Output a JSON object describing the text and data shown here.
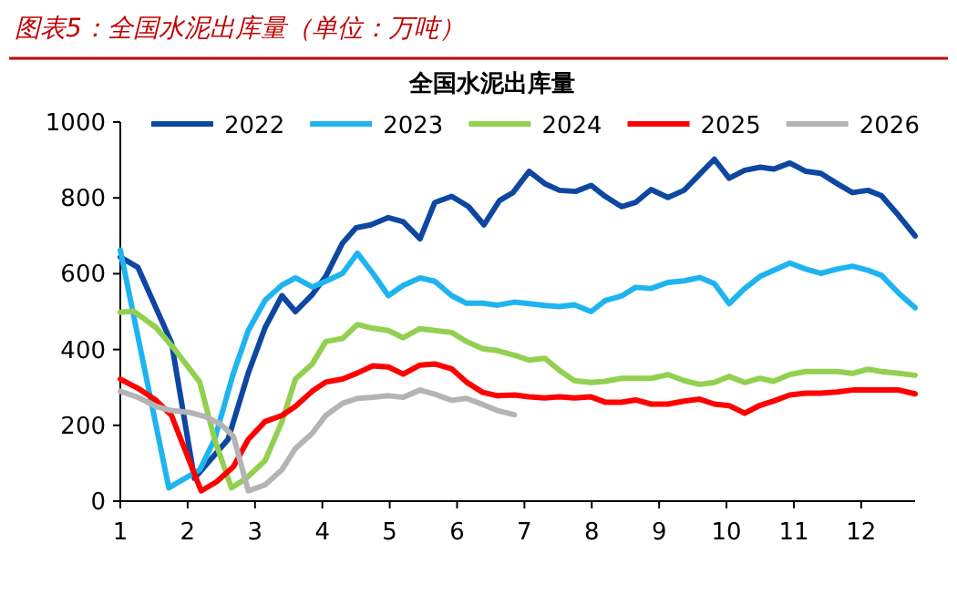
{
  "chart_data": {
    "type": "line",
    "title": "图表5：全国水泥出库量（单位：万吨）",
    "subtitle": "全国水泥出库量",
    "xlim": [
      1,
      12.8
    ],
    "xticks": [
      1,
      2,
      3,
      4,
      5,
      6,
      7,
      8,
      9,
      10,
      11,
      12
    ],
    "ylim": [
      0,
      1000
    ],
    "yticks": [
      0,
      200,
      400,
      600,
      800,
      1000
    ],
    "grid": false,
    "legend": "top",
    "marker": "none",
    "line_style": "solid",
    "series": [
      {
        "name": "2022",
        "color": "#0d47a1",
        "x": [
          1,
          1.26,
          1.76,
          2.1,
          2.6,
          2.9,
          3.15,
          3.4,
          3.6,
          3.85,
          4.05,
          4.3,
          4.5,
          4.72,
          4.98,
          5.2,
          5.45,
          5.67,
          5.92,
          6.17,
          6.4,
          6.63,
          6.83,
          7.07,
          7.3,
          7.52,
          7.76,
          7.99,
          8.2,
          8.44,
          8.65,
          8.88,
          9.13,
          9.37,
          9.6,
          9.82,
          10.04,
          10.27,
          10.5,
          10.7,
          10.94,
          11.18,
          11.4,
          11.64,
          11.87,
          12.1,
          12.3,
          12.56,
          12.8
        ],
        "values": [
          644,
          617,
          418,
          60,
          163,
          338,
          458,
          542,
          500,
          545,
          593,
          681,
          721,
          729,
          748,
          737,
          692,
          788,
          804,
          777,
          729,
          793,
          814,
          870,
          838,
          820,
          817,
          833,
          804,
          777,
          788,
          822,
          801,
          820,
          862,
          902,
          852,
          873,
          881,
          876,
          892,
          870,
          865,
          838,
          814,
          820,
          806,
          753,
          700
        ]
      },
      {
        "name": "2023",
        "color": "#1eb4f0",
        "x": [
          1,
          1.72,
          2.18,
          2.4,
          2.68,
          2.9,
          3.15,
          3.4,
          3.6,
          3.85,
          4.05,
          4.3,
          4.52,
          4.75,
          4.98,
          5.2,
          5.45,
          5.67,
          5.92,
          6.14,
          6.38,
          6.6,
          6.85,
          7.07,
          7.3,
          7.52,
          7.74,
          7.99,
          8.2,
          8.44,
          8.65,
          8.88,
          9.13,
          9.37,
          9.6,
          9.82,
          10.04,
          10.27,
          10.5,
          10.7,
          10.94,
          11.18,
          11.4,
          11.64,
          11.87,
          12.1,
          12.3,
          12.56,
          12.8
        ],
        "values": [
          662,
          35,
          83,
          163,
          338,
          450,
          530,
          570,
          589,
          565,
          580,
          601,
          654,
          601,
          542,
          569,
          589,
          580,
          542,
          522,
          522,
          517,
          525,
          521,
          516,
          513,
          518,
          500,
          529,
          541,
          564,
          561,
          577,
          581,
          590,
          574,
          521,
          561,
          593,
          609,
          628,
          612,
          601,
          612,
          620,
          609,
          596,
          548,
          510
        ]
      },
      {
        "name": "2024",
        "color": "#92d050",
        "x": [
          1,
          1.2,
          1.53,
          1.8,
          2.18,
          2.4,
          2.65,
          2.86,
          3.15,
          3.4,
          3.6,
          3.85,
          4.05,
          4.3,
          4.52,
          4.75,
          4.98,
          5.2,
          5.45,
          5.67,
          5.92,
          6.14,
          6.38,
          6.6,
          6.85,
          7.07,
          7.3,
          7.52,
          7.74,
          7.99,
          8.2,
          8.44,
          8.65,
          8.88,
          9.13,
          9.37,
          9.6,
          9.82,
          10.04,
          10.27,
          10.5,
          10.7,
          10.94,
          11.18,
          11.4,
          11.64,
          11.87,
          12.1,
          12.3,
          12.56,
          12.8
        ],
        "values": [
          498,
          501,
          458,
          402,
          314,
          163,
          35,
          59,
          107,
          210,
          322,
          362,
          421,
          429,
          466,
          456,
          450,
          431,
          455,
          450,
          445,
          421,
          402,
          397,
          385,
          372,
          377,
          345,
          318,
          313,
          316,
          324,
          324,
          324,
          334,
          318,
          308,
          313,
          329,
          313,
          324,
          316,
          334,
          342,
          342,
          342,
          337,
          348,
          342,
          337,
          332
        ]
      },
      {
        "name": "2025",
        "color": "#ff0000",
        "x": [
          1,
          1.26,
          1.53,
          1.76,
          2.2,
          2.43,
          2.68,
          2.9,
          3.15,
          3.4,
          3.6,
          3.85,
          4.05,
          4.3,
          4.52,
          4.75,
          4.98,
          5.2,
          5.45,
          5.67,
          5.92,
          6.14,
          6.38,
          6.6,
          6.85,
          7.07,
          7.3,
          7.52,
          7.74,
          7.99,
          8.2,
          8.44,
          8.65,
          8.88,
          9.13,
          9.37,
          9.6,
          9.82,
          10.04,
          10.27,
          10.5,
          10.7,
          10.94,
          11.18,
          11.4,
          11.64,
          11.87,
          12.1,
          12.3,
          12.56,
          12.8
        ],
        "values": [
          322,
          298,
          266,
          226,
          27,
          51,
          91,
          163,
          210,
          226,
          250,
          290,
          314,
          322,
          338,
          357,
          354,
          335,
          359,
          362,
          349,
          314,
          287,
          278,
          280,
          275,
          272,
          275,
          272,
          275,
          261,
          261,
          267,
          256,
          256,
          264,
          269,
          256,
          252,
          232,
          253,
          264,
          280,
          285,
          285,
          288,
          293,
          293,
          293,
          293,
          283
        ]
      },
      {
        "name": "2026",
        "color": "#b4b4b4",
        "x": [
          1,
          1.26,
          1.53,
          1.76,
          2.03,
          2.26,
          2.49,
          2.68,
          2.9,
          3.15,
          3.4,
          3.6,
          3.85,
          4.05,
          4.3,
          4.52,
          4.75,
          4.98,
          5.2,
          5.45,
          5.67,
          5.92,
          6.14,
          6.38,
          6.6,
          6.85
        ],
        "values": [
          290,
          274,
          250,
          239,
          234,
          223,
          203,
          171,
          27,
          43,
          83,
          139,
          179,
          226,
          258,
          271,
          274,
          278,
          274,
          293,
          282,
          266,
          271,
          255,
          239,
          228
        ]
      }
    ]
  }
}
